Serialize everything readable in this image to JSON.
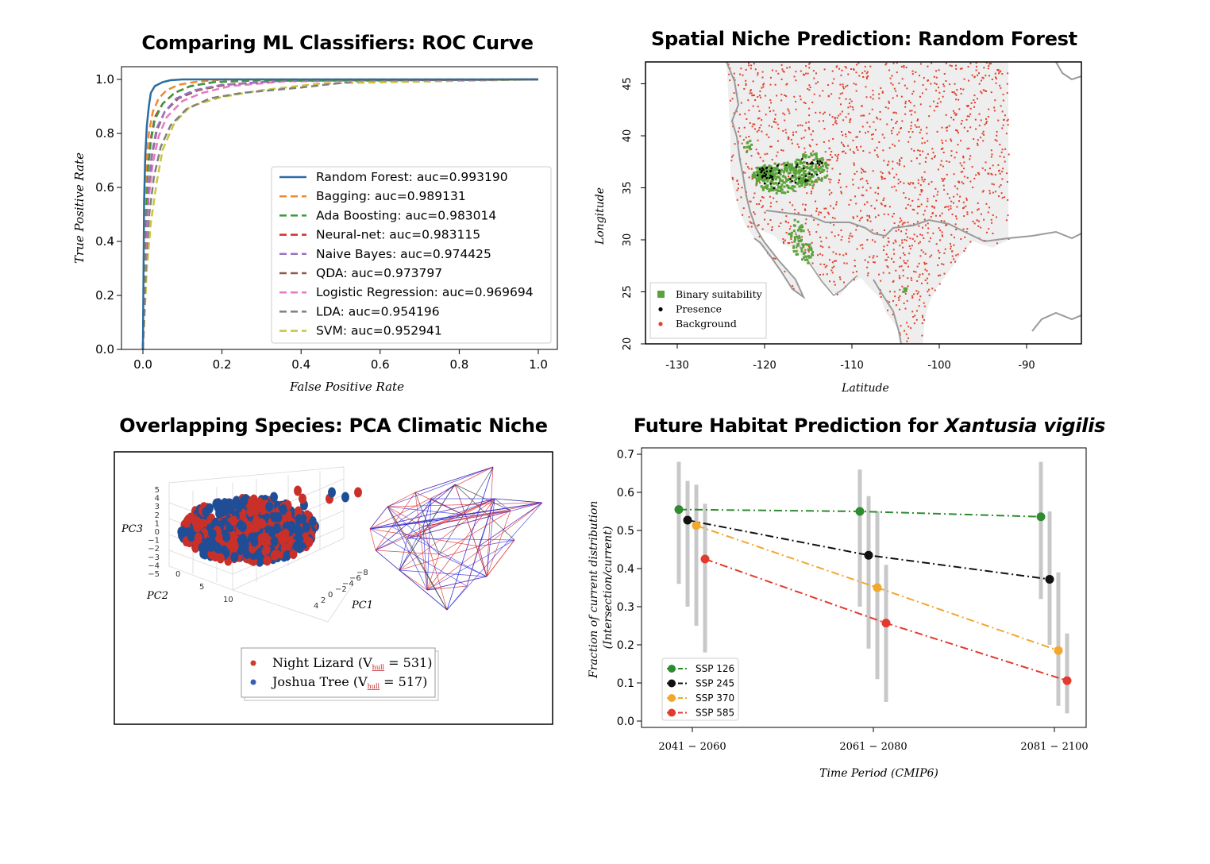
{
  "roc": {
    "title": "Comparing ML Classifiers: ROC Curve",
    "chart_data": {
      "type": "line",
      "title": "Comparing ML Classifiers: ROC Curve",
      "xlabel": "False Positive Rate",
      "ylabel": "True Positive Rate",
      "xlim": [
        0,
        1
      ],
      "ylim": [
        0,
        1
      ],
      "xticks": [
        "0.0",
        "0.2",
        "0.4",
        "0.6",
        "0.8",
        "1.0"
      ],
      "yticks": [
        "0.0",
        "0.2",
        "0.4",
        "0.6",
        "0.8",
        "1.0"
      ],
      "legend_position": "lower-right",
      "series": [
        {
          "name": "Random Forest: auc=0.993190",
          "color": "#2b6ca3",
          "dash": "solid",
          "x": [
            0,
            0.003,
            0.006,
            0.01,
            0.015,
            0.02,
            0.03,
            0.05,
            0.07,
            0.1,
            1.0
          ],
          "y": [
            0,
            0.55,
            0.72,
            0.83,
            0.9,
            0.95,
            0.975,
            0.99,
            0.997,
            1.0,
            1.0
          ]
        },
        {
          "name": "Bagging: auc=0.989131",
          "color": "#f08a2c",
          "dash": "dashed",
          "x": [
            0,
            0.004,
            0.008,
            0.015,
            0.025,
            0.04,
            0.06,
            0.09,
            0.13,
            0.2,
            1.0
          ],
          "y": [
            0,
            0.5,
            0.68,
            0.8,
            0.88,
            0.93,
            0.96,
            0.98,
            0.99,
            1.0,
            1.0
          ]
        },
        {
          "name": "Ada Boosting: auc=0.983014",
          "color": "#3a9b3a",
          "dash": "dashed",
          "x": [
            0,
            0.005,
            0.01,
            0.02,
            0.03,
            0.05,
            0.08,
            0.12,
            0.18,
            0.3,
            1.0
          ],
          "y": [
            0,
            0.45,
            0.63,
            0.77,
            0.85,
            0.91,
            0.95,
            0.975,
            0.99,
            0.997,
            1.0
          ]
        },
        {
          "name": "Neural-net: auc=0.983115",
          "color": "#d62c2c",
          "dash": "dashed",
          "x": [
            0,
            0.005,
            0.01,
            0.02,
            0.03,
            0.05,
            0.08,
            0.12,
            0.18,
            0.3,
            1.0
          ],
          "y": [
            0,
            0.46,
            0.64,
            0.78,
            0.86,
            0.91,
            0.95,
            0.975,
            0.99,
            0.997,
            1.0
          ]
        },
        {
          "name": "Naive Bayes: auc=0.974425",
          "color": "#9a72c4",
          "dash": "dashed",
          "x": [
            0,
            0.006,
            0.012,
            0.022,
            0.035,
            0.055,
            0.085,
            0.13,
            0.2,
            0.35,
            1.0
          ],
          "y": [
            0,
            0.4,
            0.58,
            0.72,
            0.82,
            0.88,
            0.93,
            0.96,
            0.98,
            0.995,
            1.0
          ]
        },
        {
          "name": "QDA: auc=0.973797",
          "color": "#8c5a4a",
          "dash": "dashed",
          "x": [
            0,
            0.006,
            0.012,
            0.022,
            0.035,
            0.055,
            0.09,
            0.14,
            0.21,
            0.35,
            1.0
          ],
          "y": [
            0,
            0.4,
            0.57,
            0.71,
            0.81,
            0.88,
            0.93,
            0.96,
            0.98,
            0.995,
            1.0
          ]
        },
        {
          "name": "Logistic Regression: auc=0.969694",
          "color": "#e57ac6",
          "dash": "dashed",
          "x": [
            0,
            0.007,
            0.014,
            0.025,
            0.04,
            0.06,
            0.1,
            0.15,
            0.22,
            0.36,
            1.0
          ],
          "y": [
            0,
            0.38,
            0.55,
            0.69,
            0.79,
            0.86,
            0.92,
            0.95,
            0.975,
            0.993,
            1.0
          ]
        },
        {
          "name": "LDA: auc=0.954196",
          "color": "#808080",
          "dash": "dashed",
          "x": [
            0,
            0.008,
            0.016,
            0.028,
            0.045,
            0.07,
            0.11,
            0.17,
            0.25,
            0.4,
            0.55,
            1.0
          ],
          "y": [
            0,
            0.33,
            0.5,
            0.64,
            0.75,
            0.83,
            0.89,
            0.93,
            0.95,
            0.97,
            0.995,
            1.0
          ]
        },
        {
          "name": "SVM: auc=0.952941",
          "color": "#c9c63c",
          "dash": "dashed",
          "x": [
            0,
            0.01,
            0.02,
            0.035,
            0.05,
            0.08,
            0.12,
            0.2,
            0.3,
            0.45,
            1.0
          ],
          "y": [
            0,
            0.3,
            0.47,
            0.62,
            0.74,
            0.84,
            0.9,
            0.935,
            0.96,
            0.985,
            1.0
          ]
        }
      ]
    }
  },
  "map": {
    "title": "Spatial Niche Prediction: Random Forest",
    "chart_data": {
      "type": "scatter",
      "title": "Spatial Niche Prediction: Random Forest",
      "xlabel": "Latitude",
      "ylabel": "Longitude",
      "xlim": [
        -134,
        -98
      ],
      "ylim": [
        20,
        47
      ],
      "xticks": [
        "-130",
        "-120",
        "-110",
        "-100",
        "-90"
      ],
      "yticks": [
        "20",
        "25",
        "30",
        "35",
        "40",
        "45"
      ],
      "legend_position": "lower-left",
      "legend": [
        {
          "label": "Binary suitability",
          "color": "#5aa33a",
          "marker": "square"
        },
        {
          "label": "Presence",
          "color": "#000000",
          "marker": "dot"
        },
        {
          "label": "Background",
          "color": "#e0402c",
          "marker": "dot"
        }
      ]
    }
  },
  "pca": {
    "title": "Overlapping Species: PCA Climatic Niche",
    "axis_labels": {
      "pc1": "PC1",
      "pc2": "PC2",
      "pc3": "PC3"
    },
    "pc3_ticks": [
      "5",
      "4",
      "3",
      "2",
      "1",
      "0",
      "−1",
      "−2",
      "−3",
      "−4",
      "−5"
    ],
    "pc2_ticks": [
      "0",
      "5",
      "10"
    ],
    "pc1_ticks": [
      "4",
      "2",
      "0",
      "−2",
      "−4",
      "−6",
      "−8"
    ],
    "legend": [
      {
        "label": "Night Lizard (V",
        "sub": "hull",
        "suffix": " = 531)",
        "color": "#d23a2a"
      },
      {
        "label": "Joshua Tree (V",
        "sub": "hull",
        "suffix": " = 517)",
        "color": "#3a5fb0"
      }
    ],
    "colors": {
      "night_lizard": "#c9302a",
      "joshua_tree": "#1f4e96"
    }
  },
  "habitat": {
    "title_prefix": "Future Habitat Prediction for ",
    "title_species": "Xantusia vigilis",
    "chart_data": {
      "type": "line",
      "title": "Future Habitat Prediction for Xantusia vigilis",
      "xlabel": "Time Period (CMIP6)",
      "ylabel": "Fraction of current distribution (Intersection/current)",
      "categories": [
        "2041 − 2060",
        "2061 − 2080",
        "2081 − 2100"
      ],
      "ylim": [
        0,
        0.72
      ],
      "yticks": [
        "0.0",
        "0.1",
        "0.2",
        "0.3",
        "0.4",
        "0.5",
        "0.6",
        "0.7"
      ],
      "legend_position": "lower-left",
      "series": [
        {
          "name": "SSP 126",
          "color": "#2e8b2e",
          "values": [
            0.555,
            0.55,
            0.536
          ],
          "err_low": [
            0.36,
            0.3,
            0.32
          ],
          "err_high": [
            0.68,
            0.66,
            0.68
          ]
        },
        {
          "name": "SSP 245",
          "color": "#111111",
          "values": [
            0.527,
            0.435,
            0.372
          ],
          "err_low": [
            0.3,
            0.19,
            0.2
          ],
          "err_high": [
            0.63,
            0.59,
            0.55
          ]
        },
        {
          "name": "SSP 370",
          "color": "#f2a72e",
          "values": [
            0.513,
            0.35,
            0.185
          ],
          "err_low": [
            0.25,
            0.11,
            0.04
          ],
          "err_high": [
            0.62,
            0.55,
            0.39
          ]
        },
        {
          "name": "SSP 585",
          "color": "#e33a2e",
          "values": [
            0.425,
            0.257,
            0.106
          ],
          "err_low": [
            0.18,
            0.05,
            0.02
          ],
          "err_high": [
            0.57,
            0.41,
            0.23
          ]
        }
      ]
    }
  }
}
